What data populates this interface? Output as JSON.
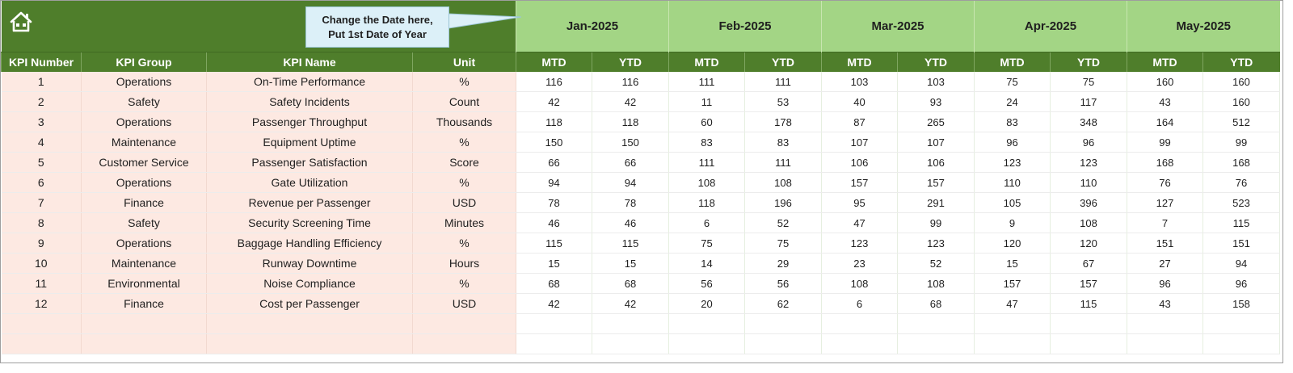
{
  "callout": {
    "line1": "Change the Date here,",
    "line2": "Put 1st Date of Year"
  },
  "months": [
    "Jan-2025",
    "Feb-2025",
    "Mar-2025",
    "Apr-2025",
    "May-2025"
  ],
  "headers": {
    "kpi_number": "KPI Number",
    "kpi_group": "KPI Group",
    "kpi_name": "KPI Name",
    "unit": "Unit",
    "mtd": "MTD",
    "ytd": "YTD"
  },
  "rows": [
    {
      "num": "1",
      "group": "Operations",
      "name": "On-Time Performance",
      "unit": "%",
      "vals": [
        "116",
        "116",
        "111",
        "111",
        "103",
        "103",
        "75",
        "75",
        "160",
        "160"
      ]
    },
    {
      "num": "2",
      "group": "Safety",
      "name": "Safety Incidents",
      "unit": "Count",
      "vals": [
        "42",
        "42",
        "11",
        "53",
        "40",
        "93",
        "24",
        "117",
        "43",
        "160"
      ]
    },
    {
      "num": "3",
      "group": "Operations",
      "name": "Passenger Throughput",
      "unit": "Thousands",
      "vals": [
        "118",
        "118",
        "60",
        "178",
        "87",
        "265",
        "83",
        "348",
        "164",
        "512"
      ]
    },
    {
      "num": "4",
      "group": "Maintenance",
      "name": "Equipment Uptime",
      "unit": "%",
      "vals": [
        "150",
        "150",
        "83",
        "83",
        "107",
        "107",
        "96",
        "96",
        "99",
        "99"
      ]
    },
    {
      "num": "5",
      "group": "Customer Service",
      "name": "Passenger Satisfaction",
      "unit": "Score",
      "vals": [
        "66",
        "66",
        "111",
        "111",
        "106",
        "106",
        "123",
        "123",
        "168",
        "168"
      ]
    },
    {
      "num": "6",
      "group": "Operations",
      "name": "Gate Utilization",
      "unit": "%",
      "vals": [
        "94",
        "94",
        "108",
        "108",
        "157",
        "157",
        "110",
        "110",
        "76",
        "76"
      ]
    },
    {
      "num": "7",
      "group": "Finance",
      "name": "Revenue per Passenger",
      "unit": "USD",
      "vals": [
        "78",
        "78",
        "118",
        "196",
        "95",
        "291",
        "105",
        "396",
        "127",
        "523"
      ]
    },
    {
      "num": "8",
      "group": "Safety",
      "name": "Security Screening Time",
      "unit": "Minutes",
      "vals": [
        "46",
        "46",
        "6",
        "52",
        "47",
        "99",
        "9",
        "108",
        "7",
        "115"
      ]
    },
    {
      "num": "9",
      "group": "Operations",
      "name": "Baggage Handling Efficiency",
      "unit": "%",
      "vals": [
        "115",
        "115",
        "75",
        "75",
        "123",
        "123",
        "120",
        "120",
        "151",
        "151"
      ]
    },
    {
      "num": "10",
      "group": "Maintenance",
      "name": "Runway Downtime",
      "unit": "Hours",
      "vals": [
        "15",
        "15",
        "14",
        "29",
        "23",
        "52",
        "15",
        "67",
        "27",
        "94"
      ]
    },
    {
      "num": "11",
      "group": "Environmental",
      "name": "Noise Compliance",
      "unit": "%",
      "vals": [
        "68",
        "68",
        "56",
        "56",
        "108",
        "108",
        "157",
        "157",
        "96",
        "96"
      ]
    },
    {
      "num": "12",
      "group": "Finance",
      "name": "Cost per Passenger",
      "unit": "USD",
      "vals": [
        "42",
        "42",
        "20",
        "62",
        "6",
        "68",
        "47",
        "115",
        "43",
        "158"
      ]
    },
    {
      "num": "",
      "group": "",
      "name": "",
      "unit": "",
      "vals": [
        "",
        "",
        "",
        "",
        "",
        "",
        "",
        "",
        "",
        ""
      ]
    },
    {
      "num": "",
      "group": "",
      "name": "",
      "unit": "",
      "vals": [
        "",
        "",
        "",
        "",
        "",
        "",
        "",
        "",
        "",
        ""
      ]
    }
  ]
}
